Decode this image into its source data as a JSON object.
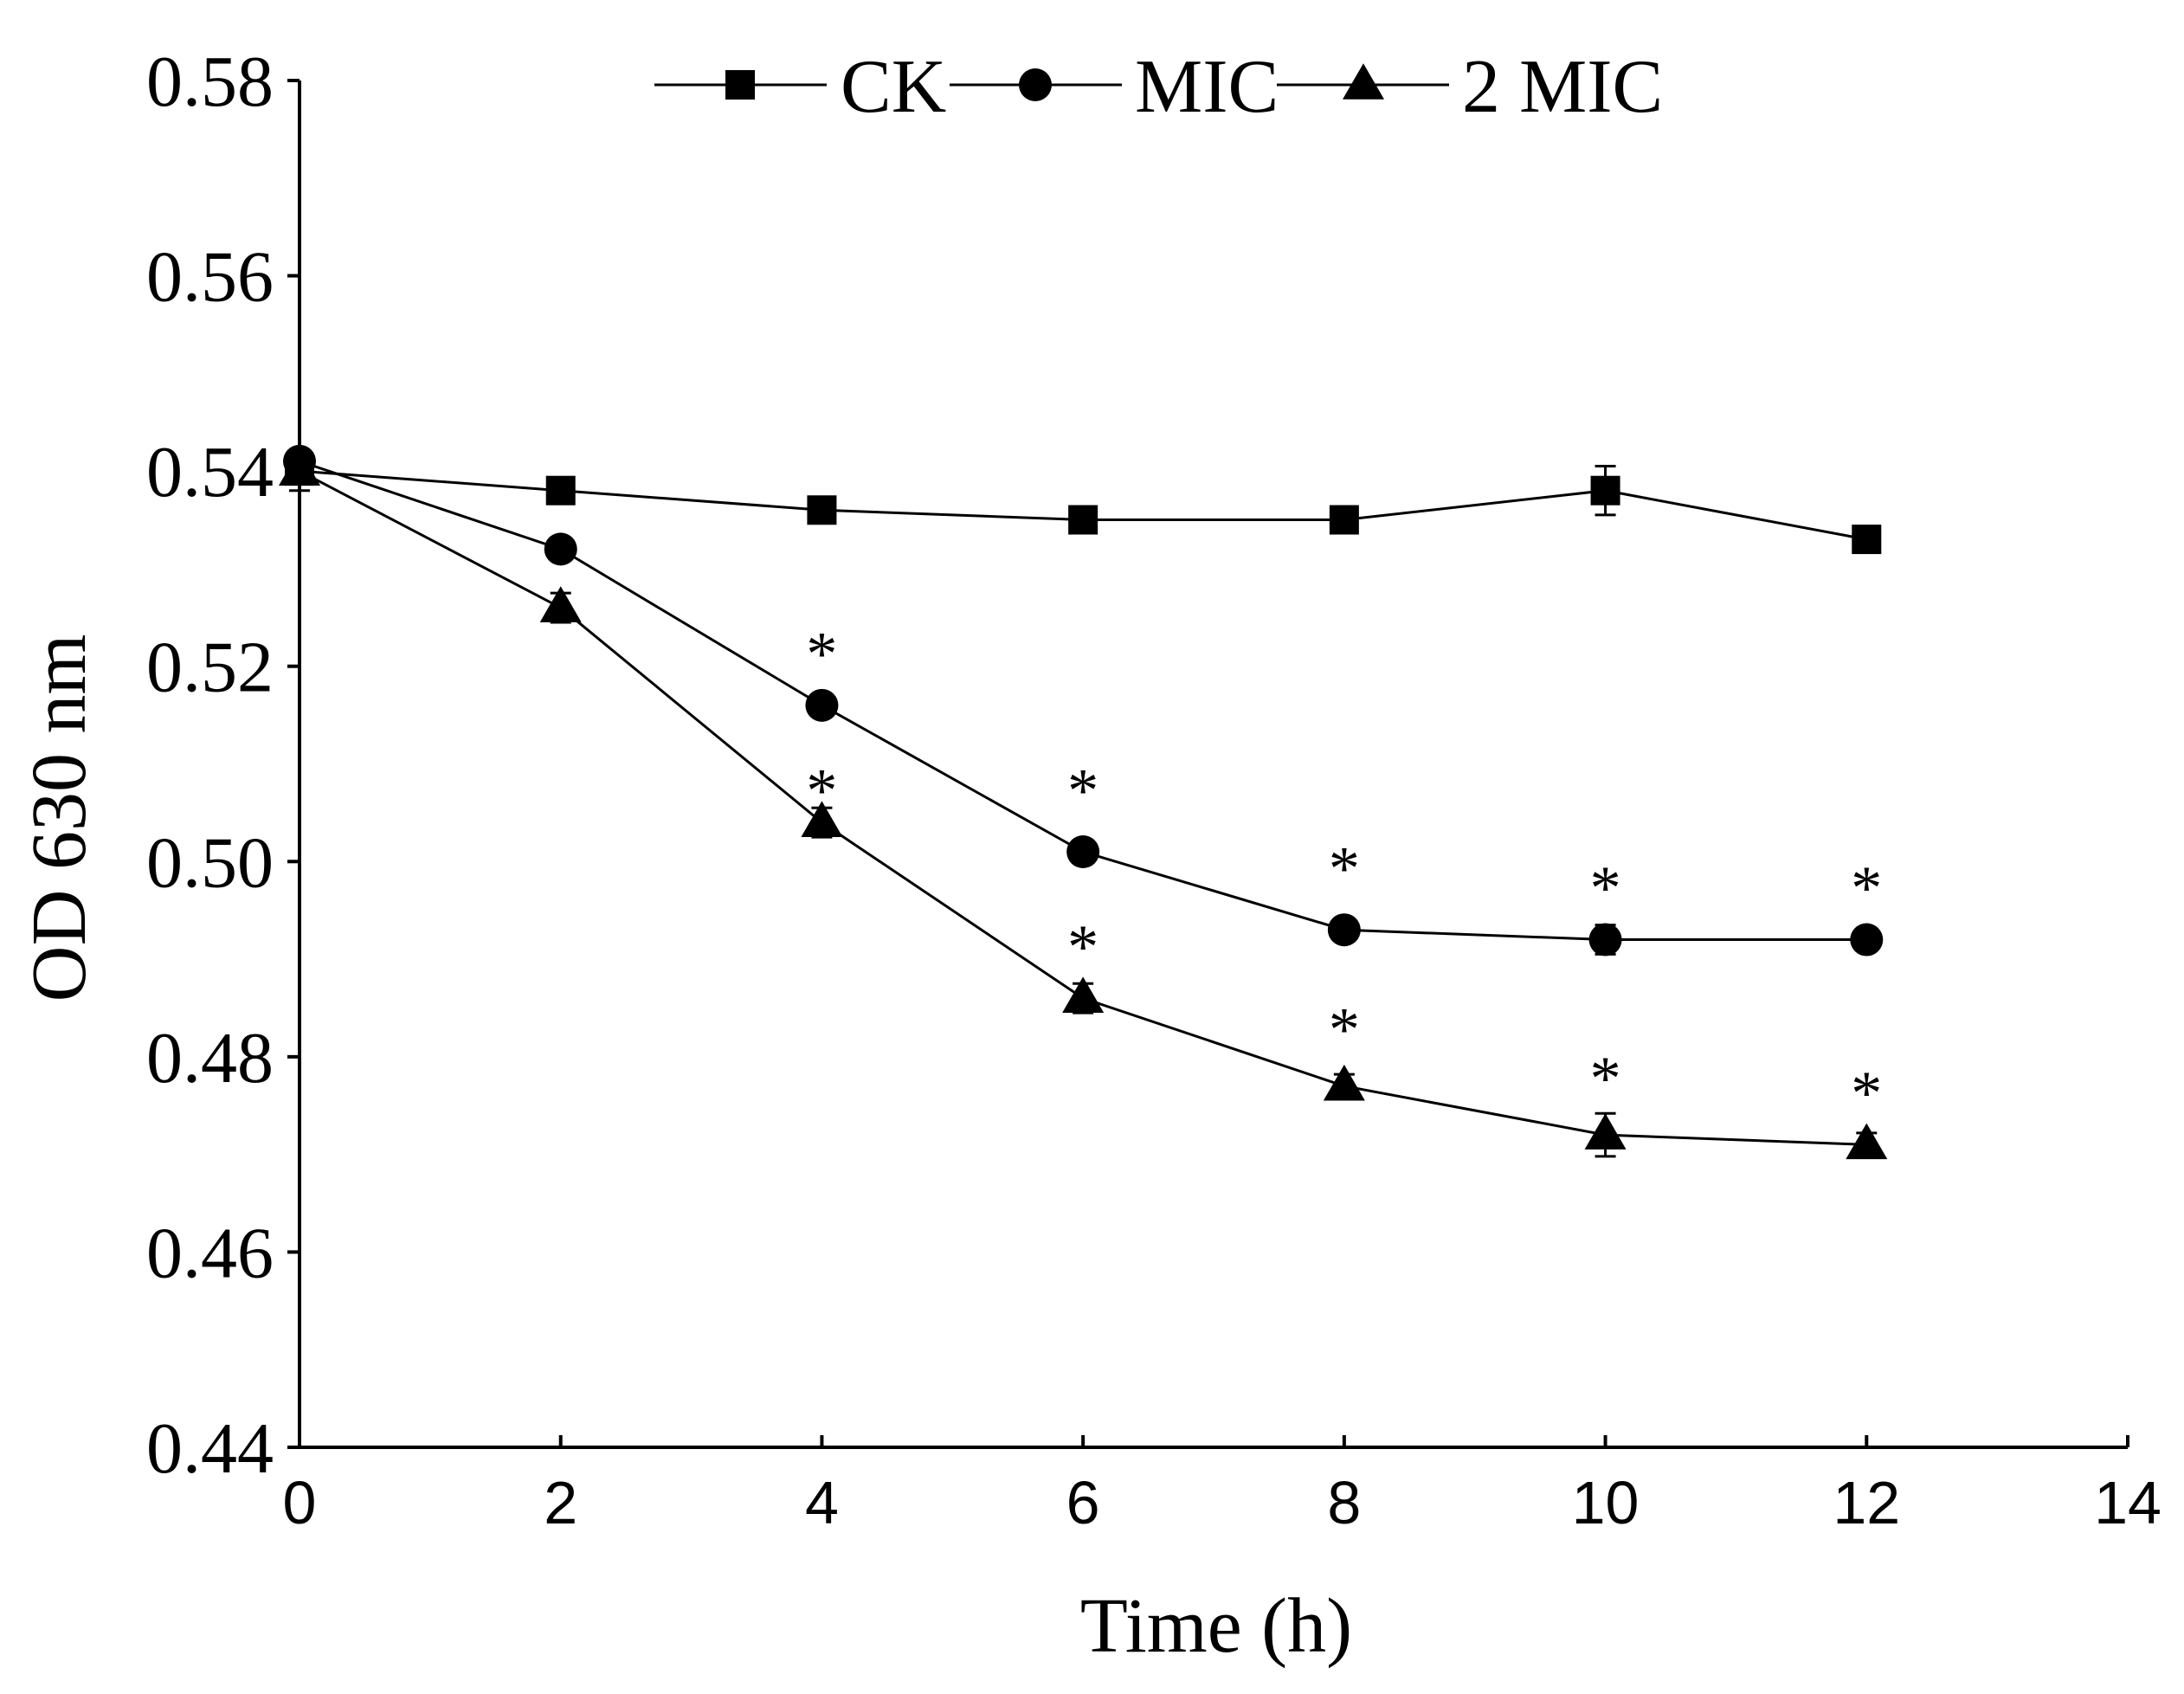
{
  "chart_data": {
    "type": "line",
    "title": "",
    "xlabel": "Time (h)",
    "ylabel": "OD 630 nm",
    "xlim": [
      0,
      14
    ],
    "ylim": [
      0.44,
      0.58
    ],
    "x_ticks": [
      0,
      2,
      4,
      6,
      8,
      10,
      12,
      14
    ],
    "x_tick_labels": [
      "0",
      "2",
      "4",
      "6",
      "8",
      "10",
      "12",
      "14"
    ],
    "y_ticks": [
      0.44,
      0.46,
      0.48,
      0.5,
      0.52,
      0.54,
      0.56,
      0.58
    ],
    "y_tick_labels": [
      "0.44",
      "0.46",
      "0.48",
      "0.50",
      "0.52",
      "0.54",
      "0.56",
      "0.58"
    ],
    "grid": false,
    "legend_position": "top-center",
    "x": [
      0,
      2,
      4,
      6,
      8,
      10,
      12
    ],
    "series": [
      {
        "name": "CK",
        "marker": "square",
        "values": [
          0.54,
          0.538,
          0.536,
          0.535,
          0.535,
          0.538,
          0.533
        ],
        "errors": [
          0.002,
          0.0005,
          0.0005,
          0.0005,
          0.0005,
          0.0025,
          0.0005
        ]
      },
      {
        "name": "MIC",
        "marker": "circle",
        "values": [
          0.541,
          0.532,
          0.516,
          0.501,
          0.493,
          0.492,
          0.492
        ],
        "errors": [
          0.001,
          0.001,
          0.001,
          0.0005,
          0.0005,
          0.0015,
          0.0005
        ]
      },
      {
        "name": "2 MIC",
        "marker": "triangle",
        "values": [
          0.54,
          0.526,
          0.504,
          0.486,
          0.477,
          0.472,
          0.471
        ],
        "errors": [
          0.001,
          0.0015,
          0.0015,
          0.0015,
          0.0012,
          0.0022,
          0.0012
        ]
      }
    ],
    "annotations": [
      {
        "text": "*",
        "series": "MIC",
        "x": 4,
        "y": 0.5225
      },
      {
        "text": "*",
        "series": "MIC",
        "x": 6,
        "y": 0.5085
      },
      {
        "text": "*",
        "series": "MIC",
        "x": 8,
        "y": 0.5005
      },
      {
        "text": "*",
        "series": "MIC",
        "x": 10,
        "y": 0.4985
      },
      {
        "text": "*",
        "series": "MIC",
        "x": 12,
        "y": 0.4985
      },
      {
        "text": "*",
        "series": "2 MIC",
        "x": 4,
        "y": 0.5085
      },
      {
        "text": "*",
        "series": "2 MIC",
        "x": 6,
        "y": 0.4925
      },
      {
        "text": "*",
        "series": "2 MIC",
        "x": 8,
        "y": 0.484
      },
      {
        "text": "*",
        "series": "2 MIC",
        "x": 10,
        "y": 0.479
      },
      {
        "text": "*",
        "series": "2 MIC",
        "x": 12,
        "y": 0.4775
      }
    ]
  },
  "colors": {
    "ink": "#000000",
    "background": "#ffffff"
  }
}
